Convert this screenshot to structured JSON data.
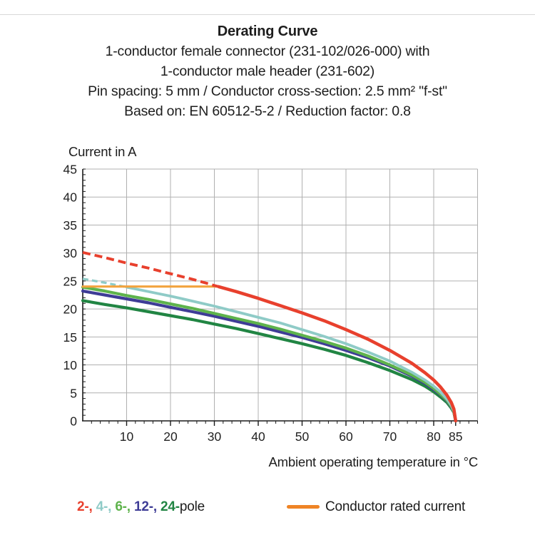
{
  "header": {
    "title": "Derating Curve",
    "subtitle_lines": [
      "1-conductor female connector (231-102/026-000) with",
      "1-conductor male header (231-602)",
      "Pin spacing: 5 mm / Conductor cross-section: 2.5 mm² \"f-st\"",
      "Based on: EN 60512-5-2 / Reduction factor: 0.8"
    ]
  },
  "chart": {
    "y_axis_title": "Current in A",
    "x_axis_title": "Ambient operating temperature in °C",
    "grid_color": "#b0b0b0",
    "axis_color": "#1a1a1a",
    "tick_label_color": "#222222"
  },
  "chart_data": {
    "type": "line",
    "title": "Derating Curve",
    "xlabel": "Ambient operating temperature in °C",
    "ylabel": "Current in A",
    "xlim": [
      0,
      90
    ],
    "ylim": [
      0,
      45
    ],
    "x_major_ticks": [
      10,
      20,
      30,
      40,
      50,
      60,
      70,
      80,
      85
    ],
    "x_minor_tick_step": 2,
    "y_major_ticks": [
      0,
      5,
      10,
      15,
      20,
      25,
      30,
      35,
      40,
      45
    ],
    "y_minor_tick_step": 1,
    "grid": true,
    "legend_position": "bottom",
    "series": [
      {
        "name": "2-pole",
        "color": "#E8402D",
        "style": "dashed-then-solid",
        "dash_until_x": 31,
        "points": [
          [
            0,
            30.1
          ],
          [
            5,
            29.2
          ],
          [
            10,
            28.2
          ],
          [
            15,
            27.3
          ],
          [
            20,
            26.3
          ],
          [
            25,
            25.3
          ],
          [
            30,
            24.2
          ],
          [
            35,
            23.1
          ],
          [
            40,
            21.9
          ],
          [
            45,
            20.6
          ],
          [
            50,
            19.3
          ],
          [
            55,
            17.9
          ],
          [
            60,
            16.3
          ],
          [
            65,
            14.6
          ],
          [
            70,
            12.6
          ],
          [
            75,
            10.3
          ],
          [
            78,
            8.6
          ],
          [
            80,
            7.3
          ],
          [
            81.5,
            6.1
          ],
          [
            83,
            4.6
          ],
          [
            84,
            3.3
          ],
          [
            84.6,
            2.1
          ],
          [
            85,
            0
          ]
        ]
      },
      {
        "name": "4-pole",
        "color": "#8FCBC7",
        "style": "dashed-then-solid",
        "dash_until_x": 10,
        "points": [
          [
            0,
            25.4
          ],
          [
            5,
            24.7
          ],
          [
            10,
            23.9
          ],
          [
            15,
            23.1
          ],
          [
            20,
            22.3
          ],
          [
            25,
            21.4
          ],
          [
            30,
            20.5
          ],
          [
            35,
            19.5
          ],
          [
            40,
            18.5
          ],
          [
            45,
            17.5
          ],
          [
            50,
            16.3
          ],
          [
            55,
            15.1
          ],
          [
            60,
            13.8
          ],
          [
            65,
            12.3
          ],
          [
            70,
            10.7
          ],
          [
            75,
            8.7
          ],
          [
            78,
            7.3
          ],
          [
            80,
            6.2
          ],
          [
            81.5,
            5.2
          ],
          [
            83,
            3.9
          ],
          [
            84,
            2.8
          ],
          [
            84.6,
            1.7
          ],
          [
            85,
            0
          ]
        ]
      },
      {
        "name": "6-pole",
        "color": "#5EB34C",
        "style": "solid",
        "points": [
          [
            0,
            23.9
          ],
          [
            5,
            23.2
          ],
          [
            10,
            22.4
          ],
          [
            15,
            21.7
          ],
          [
            20,
            20.9
          ],
          [
            25,
            20.1
          ],
          [
            30,
            19.2
          ],
          [
            35,
            18.3
          ],
          [
            40,
            17.4
          ],
          [
            45,
            16.4
          ],
          [
            50,
            15.3
          ],
          [
            55,
            14.2
          ],
          [
            60,
            13.0
          ],
          [
            65,
            11.6
          ],
          [
            70,
            10.0
          ],
          [
            75,
            8.2
          ],
          [
            78,
            6.9
          ],
          [
            80,
            5.8
          ],
          [
            81.5,
            4.8
          ],
          [
            83,
            3.7
          ],
          [
            84,
            2.6
          ],
          [
            84.6,
            1.6
          ],
          [
            85,
            0
          ]
        ]
      },
      {
        "name": "12-pole",
        "color": "#3E3C96",
        "style": "solid",
        "points": [
          [
            0,
            23.2
          ],
          [
            5,
            22.5
          ],
          [
            10,
            21.8
          ],
          [
            15,
            21.1
          ],
          [
            20,
            20.3
          ],
          [
            25,
            19.5
          ],
          [
            30,
            18.7
          ],
          [
            35,
            17.8
          ],
          [
            40,
            16.9
          ],
          [
            45,
            15.9
          ],
          [
            50,
            14.9
          ],
          [
            55,
            13.8
          ],
          [
            60,
            12.6
          ],
          [
            65,
            11.3
          ],
          [
            70,
            9.8
          ],
          [
            75,
            8.0
          ],
          [
            78,
            6.7
          ],
          [
            80,
            5.6
          ],
          [
            81.5,
            4.7
          ],
          [
            83,
            3.6
          ],
          [
            84,
            2.5
          ],
          [
            84.6,
            1.6
          ],
          [
            85,
            0
          ]
        ]
      },
      {
        "name": "24-pole",
        "color": "#218543",
        "style": "solid",
        "points": [
          [
            0,
            21.5
          ],
          [
            5,
            20.8
          ],
          [
            10,
            20.2
          ],
          [
            15,
            19.5
          ],
          [
            20,
            18.8
          ],
          [
            25,
            18.1
          ],
          [
            30,
            17.3
          ],
          [
            35,
            16.5
          ],
          [
            40,
            15.6
          ],
          [
            45,
            14.7
          ],
          [
            50,
            13.8
          ],
          [
            55,
            12.8
          ],
          [
            60,
            11.7
          ],
          [
            65,
            10.4
          ],
          [
            70,
            9.0
          ],
          [
            75,
            7.4
          ],
          [
            78,
            6.2
          ],
          [
            80,
            5.2
          ],
          [
            81.5,
            4.3
          ],
          [
            83,
            3.3
          ],
          [
            84,
            2.3
          ],
          [
            84.6,
            1.5
          ],
          [
            85,
            0
          ]
        ]
      },
      {
        "name": "Conductor rated current",
        "color": "#F2A33E",
        "style": "solid",
        "points": [
          [
            0,
            24
          ],
          [
            31,
            24
          ]
        ]
      }
    ]
  },
  "legend": {
    "pole_entries": [
      {
        "text": "2-",
        "color": "#E8402D"
      },
      {
        "text": "4-",
        "color": "#8FCBC7"
      },
      {
        "text": "6-",
        "color": "#5EB34C"
      },
      {
        "text": "12-",
        "color": "#3E3C96"
      },
      {
        "text": "24-",
        "color": "#218543"
      }
    ],
    "pole_separator": ", ",
    "pole_suffix": "pole",
    "rated_label": "Conductor rated current",
    "rated_swatch_color": "#EF8425"
  }
}
